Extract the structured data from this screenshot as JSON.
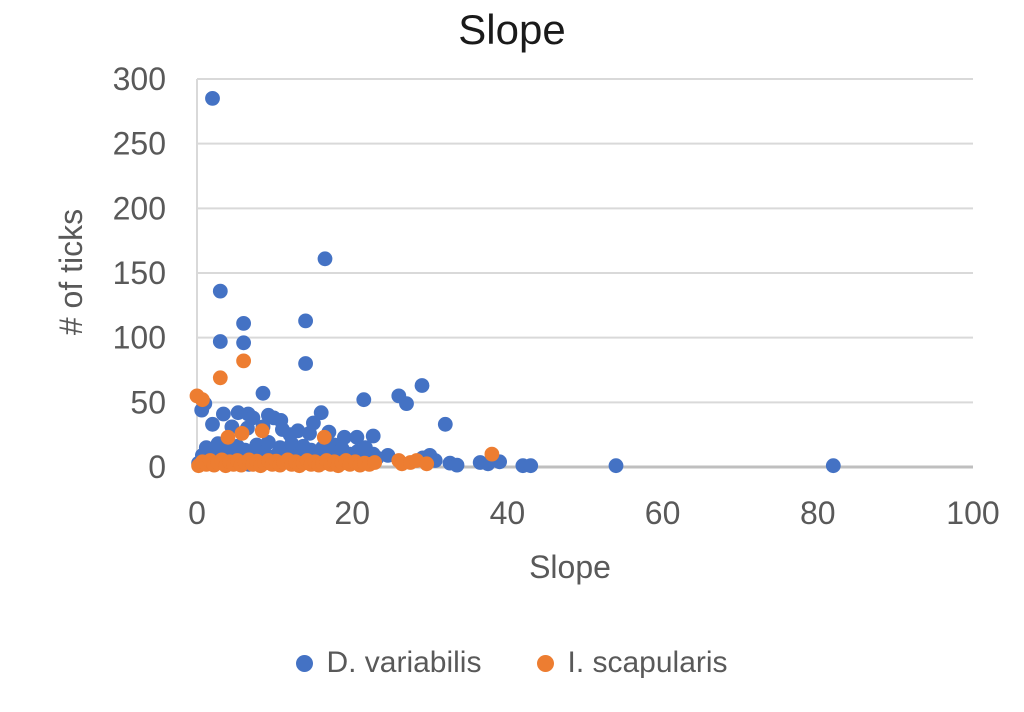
{
  "chart": {
    "title": "Slope",
    "x_axis_title": "Slope",
    "y_axis_title": "# of ticks",
    "legend": [
      {
        "label": "D. variabilis",
        "color": "#4472C4"
      },
      {
        "label": "I. scapularis",
        "color": "#ED7D31"
      }
    ]
  },
  "colors": {
    "grid": "#D9D9D9",
    "axis": "#BFBFBF",
    "tick_text": "#595959",
    "title_text": "#1A1A1A",
    "series_blue": "#4472C4",
    "series_orange": "#ED7D31"
  },
  "chart_data": {
    "type": "scatter",
    "title": "Slope",
    "xlabel": "Slope",
    "ylabel": "# of ticks",
    "xlim": [
      0,
      100
    ],
    "ylim": [
      0,
      300
    ],
    "xticks": [
      0,
      20,
      40,
      60,
      80,
      100
    ],
    "yticks": [
      0,
      50,
      100,
      150,
      200,
      250,
      300
    ],
    "grid": "horizontal-only",
    "legend_position": "bottom",
    "series": [
      {
        "name": "D. variabilis",
        "color": "#4472C4",
        "points": [
          [
            2,
            285
          ],
          [
            16.5,
            161
          ],
          [
            3,
            136
          ],
          [
            14,
            113
          ],
          [
            6,
            111
          ],
          [
            3,
            97
          ],
          [
            6,
            96
          ],
          [
            14,
            80
          ],
          [
            29,
            63
          ],
          [
            8.5,
            57
          ],
          [
            26,
            55
          ],
          [
            21.5,
            52
          ],
          [
            27,
            49
          ],
          [
            1,
            49
          ],
          [
            0.6,
            44
          ],
          [
            3.4,
            41
          ],
          [
            5.3,
            42
          ],
          [
            6.6,
            41
          ],
          [
            7.2,
            38
          ],
          [
            9.2,
            40
          ],
          [
            9.9,
            38
          ],
          [
            10.8,
            36
          ],
          [
            16,
            42
          ],
          [
            15,
            34
          ],
          [
            32,
            33
          ],
          [
            2,
            33
          ],
          [
            4.5,
            31
          ],
          [
            6.5,
            30
          ],
          [
            8.5,
            31
          ],
          [
            11,
            29
          ],
          [
            13,
            28
          ],
          [
            17,
            27
          ],
          [
            14.5,
            26
          ],
          [
            12,
            25
          ],
          [
            19,
            23
          ],
          [
            20.6,
            23
          ],
          [
            22.7,
            24
          ],
          [
            24.6,
            9
          ],
          [
            29.1,
            7
          ],
          [
            30,
            9
          ],
          [
            30.7,
            5
          ],
          [
            32.6,
            3
          ],
          [
            33.5,
            1.5
          ],
          [
            36.5,
            3.5
          ],
          [
            37.5,
            2.5
          ],
          [
            39,
            4
          ],
          [
            42,
            1
          ],
          [
            43,
            1
          ],
          [
            54,
            1
          ],
          [
            82,
            1
          ],
          [
            0.2,
            3
          ],
          [
            0.7,
            9
          ],
          [
            1.2,
            15
          ],
          [
            1.7,
            5
          ],
          [
            2.2,
            12
          ],
          [
            2.7,
            18
          ],
          [
            3.2,
            7
          ],
          [
            3.7,
            14
          ],
          [
            4.2,
            4
          ],
          [
            4.7,
            10
          ],
          [
            5.2,
            16
          ],
          [
            5.7,
            6
          ],
          [
            6.2,
            13
          ],
          [
            6.7,
            2
          ],
          [
            7.2,
            8
          ],
          [
            7.7,
            17
          ],
          [
            8.2,
            5
          ],
          [
            8.7,
            11
          ],
          [
            9.2,
            19
          ],
          [
            9.7,
            3
          ],
          [
            10.2,
            9
          ],
          [
            10.7,
            15
          ],
          [
            11.2,
            6
          ],
          [
            11.7,
            12
          ],
          [
            12.2,
            18
          ],
          [
            12.7,
            4
          ],
          [
            13.2,
            10
          ],
          [
            13.7,
            16
          ],
          [
            14.2,
            7
          ],
          [
            14.7,
            13
          ],
          [
            15.2,
            3
          ],
          [
            15.7,
            9
          ],
          [
            16.2,
            15
          ],
          [
            16.7,
            5
          ],
          [
            17.2,
            11
          ],
          [
            17.7,
            17
          ],
          [
            18.2,
            8
          ],
          [
            18.7,
            14
          ],
          [
            19.2,
            4
          ],
          [
            19.7,
            10
          ],
          [
            20.2,
            6
          ],
          [
            20.7,
            12
          ],
          [
            21.2,
            8
          ],
          [
            21.7,
            15
          ],
          [
            22.2,
            5
          ],
          [
            22.7,
            10
          ],
          [
            23.2,
            7
          ]
        ]
      },
      {
        "name": "I. scapularis",
        "color": "#ED7D31",
        "points": [
          [
            6,
            82
          ],
          [
            3,
            69
          ],
          [
            0,
            55
          ],
          [
            0.7,
            52
          ],
          [
            8.4,
            28
          ],
          [
            5.8,
            26
          ],
          [
            4,
            23
          ],
          [
            16.4,
            23
          ],
          [
            38,
            10
          ],
          [
            0.2,
            1
          ],
          [
            0.7,
            4
          ],
          [
            1.2,
            2
          ],
          [
            1.7,
            5
          ],
          [
            2.2,
            1.5
          ],
          [
            2.7,
            3.5
          ],
          [
            3.2,
            5.5
          ],
          [
            3.7,
            1
          ],
          [
            4.2,
            4
          ],
          [
            4.7,
            2
          ],
          [
            5.2,
            5
          ],
          [
            5.7,
            1.5
          ],
          [
            6.2,
            3.5
          ],
          [
            6.7,
            5.5
          ],
          [
            7.2,
            2
          ],
          [
            7.7,
            4.5
          ],
          [
            8.2,
            1
          ],
          [
            8.7,
            3
          ],
          [
            9.2,
            5
          ],
          [
            9.7,
            2
          ],
          [
            10.2,
            4.5
          ],
          [
            10.7,
            1.5
          ],
          [
            11.2,
            3.5
          ],
          [
            11.7,
            5.5
          ],
          [
            12.2,
            2
          ],
          [
            12.7,
            4
          ],
          [
            13.2,
            1
          ],
          [
            13.7,
            3
          ],
          [
            14.2,
            5
          ],
          [
            14.7,
            2
          ],
          [
            15.2,
            4
          ],
          [
            15.7,
            1.5
          ],
          [
            16.2,
            3
          ],
          [
            16.7,
            5
          ],
          [
            17.2,
            2
          ],
          [
            17.7,
            4
          ],
          [
            18.2,
            1
          ],
          [
            18.7,
            3
          ],
          [
            19.2,
            5
          ],
          [
            19.7,
            2
          ],
          [
            20.4,
            4
          ],
          [
            21,
            1.5
          ],
          [
            21.6,
            3
          ],
          [
            22.2,
            2
          ],
          [
            22.9,
            3.5
          ],
          [
            26,
            5
          ],
          [
            26.4,
            2.5
          ],
          [
            27.5,
            3.5
          ],
          [
            28.3,
            5
          ],
          [
            29.6,
            2.5
          ]
        ]
      }
    ]
  }
}
